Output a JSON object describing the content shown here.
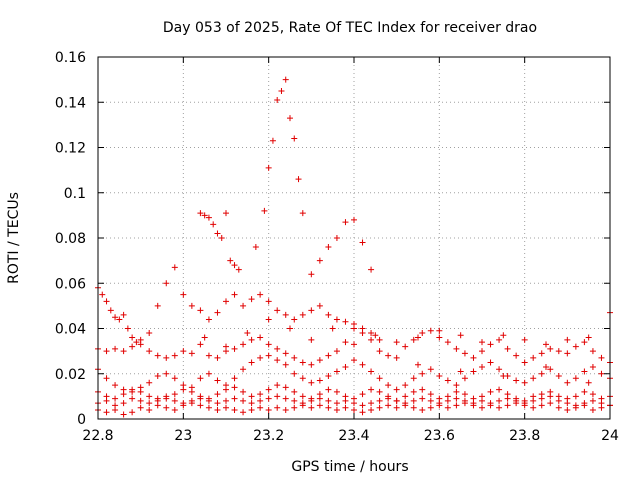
{
  "chart_data": {
    "type": "scatter",
    "title": "Day 053 of 2025, Rate Of TEC Index for receiver drao",
    "xlabel": "GPS time / hours",
    "ylabel": "ROTI / TECUs",
    "xlim": [
      22.8,
      24.0
    ],
    "ylim": [
      0,
      0.16
    ],
    "xticks": [
      22.8,
      23.0,
      23.2,
      23.4,
      23.6,
      23.8,
      24.0
    ],
    "xtick_labels": [
      "22.8",
      "23",
      "23.2",
      "23.4",
      "23.6",
      "23.8",
      "24"
    ],
    "yticks": [
      0,
      0.02,
      0.04,
      0.06,
      0.08,
      0.1,
      0.12,
      0.14,
      0.16
    ],
    "ytick_labels": [
      "0",
      "0.02",
      "0.04",
      "0.06",
      "0.08",
      "0.1",
      "0.12",
      "0.14",
      "0.16"
    ],
    "grid": true,
    "legend": "none",
    "marker": "plus",
    "color": "#e00000",
    "series": [
      {
        "x": [
          22.8,
          22.81,
          22.82,
          22.83,
          22.84,
          22.85,
          22.86,
          22.87,
          22.88,
          22.89,
          22.9,
          22.92,
          22.94,
          22.96,
          22.98,
          23.0,
          23.02,
          23.04,
          23.06,
          23.08,
          23.1,
          23.12,
          23.14,
          23.16,
          23.18,
          23.2,
          23.22,
          23.24,
          23.26,
          23.28,
          23.3,
          23.32,
          23.34,
          23.36,
          23.38,
          23.4,
          23.42,
          23.44,
          23.46,
          23.5,
          23.55,
          23.6,
          23.65,
          23.7,
          23.75,
          23.8,
          23.85,
          23.9,
          23.95,
          24.0
        ],
        "y": [
          0.058,
          0.055,
          0.052,
          0.048,
          0.045,
          0.044,
          0.046,
          0.04,
          0.036,
          0.034,
          0.035,
          0.038,
          0.05,
          0.06,
          0.067,
          0.055,
          0.05,
          0.048,
          0.044,
          0.047,
          0.052,
          0.055,
          0.05,
          0.053,
          0.055,
          0.052,
          0.048,
          0.046,
          0.044,
          0.046,
          0.048,
          0.05,
          0.046,
          0.044,
          0.043,
          0.042,
          0.04,
          0.038,
          0.035,
          0.034,
          0.036,
          0.039,
          0.037,
          0.034,
          0.037,
          0.035,
          0.033,
          0.035,
          0.036,
          0.047
        ]
      },
      {
        "x": [
          23.04,
          23.05,
          23.06,
          23.07,
          23.08,
          23.09,
          23.1,
          23.11,
          23.12,
          23.13
        ],
        "y": [
          0.091,
          0.09,
          0.089,
          0.086,
          0.082,
          0.08,
          0.091,
          0.07,
          0.068,
          0.066
        ]
      },
      {
        "x": [
          23.17,
          23.19,
          23.2,
          23.21,
          23.22,
          23.23,
          23.24,
          23.25,
          23.26,
          23.27,
          23.28,
          23.3,
          23.32,
          23.34,
          23.36,
          23.38,
          23.4,
          23.42,
          23.44
        ],
        "y": [
          0.076,
          0.092,
          0.111,
          0.123,
          0.141,
          0.145,
          0.15,
          0.133,
          0.124,
          0.106,
          0.091,
          0.064,
          0.07,
          0.076,
          0.08,
          0.087,
          0.088,
          0.078,
          0.066
        ]
      },
      {
        "x": [
          22.8,
          22.82,
          22.84,
          22.86,
          22.88,
          22.9,
          22.92,
          22.94,
          22.96,
          22.98,
          23.0,
          23.02,
          23.04,
          23.06,
          23.08,
          23.1,
          23.12,
          23.14,
          23.16,
          23.18,
          23.2,
          23.22,
          23.24,
          23.26,
          23.28,
          23.3,
          23.32,
          23.34,
          23.36,
          23.38,
          23.4,
          23.42,
          23.44,
          23.46,
          23.48,
          23.5,
          23.52,
          23.54,
          23.56,
          23.58,
          23.6,
          23.62,
          23.64,
          23.66,
          23.68,
          23.7,
          23.72,
          23.74,
          23.76,
          23.78,
          23.8,
          23.82,
          23.84,
          23.86,
          23.88,
          23.9,
          23.92,
          23.94,
          23.96,
          23.98,
          24.0
        ],
        "y": [
          0.031,
          0.03,
          0.031,
          0.03,
          0.032,
          0.033,
          0.03,
          0.028,
          0.027,
          0.028,
          0.03,
          0.029,
          0.033,
          0.028,
          0.027,
          0.03,
          0.031,
          0.033,
          0.035,
          0.036,
          0.033,
          0.031,
          0.029,
          0.027,
          0.025,
          0.024,
          0.026,
          0.028,
          0.03,
          0.034,
          0.04,
          0.038,
          0.035,
          0.03,
          0.028,
          0.027,
          0.032,
          0.035,
          0.038,
          0.039,
          0.036,
          0.034,
          0.031,
          0.029,
          0.027,
          0.03,
          0.033,
          0.035,
          0.031,
          0.028,
          0.025,
          0.027,
          0.029,
          0.031,
          0.03,
          0.029,
          0.032,
          0.034,
          0.03,
          0.027,
          0.025
        ]
      },
      {
        "x": [
          22.8,
          22.82,
          22.84,
          22.86,
          22.88,
          22.9,
          22.92,
          22.94,
          22.96,
          22.98,
          23.0,
          23.02,
          23.04,
          23.06,
          23.08,
          23.1,
          23.12,
          23.14,
          23.16,
          23.18,
          23.2,
          23.22,
          23.24,
          23.26,
          23.28,
          23.3,
          23.32,
          23.34,
          23.36,
          23.38,
          23.4,
          23.42,
          23.44,
          23.46,
          23.48,
          23.5,
          23.52,
          23.54,
          23.56,
          23.58,
          23.6,
          23.62,
          23.64,
          23.66,
          23.68,
          23.7,
          23.72,
          23.74,
          23.76,
          23.78,
          23.8,
          23.82,
          23.84,
          23.86,
          23.88,
          23.9,
          23.92,
          23.94,
          23.96,
          23.98,
          24.0
        ],
        "y": [
          0.022,
          0.018,
          0.015,
          0.013,
          0.012,
          0.014,
          0.016,
          0.019,
          0.02,
          0.018,
          0.015,
          0.014,
          0.018,
          0.02,
          0.017,
          0.015,
          0.018,
          0.022,
          0.025,
          0.027,
          0.028,
          0.026,
          0.024,
          0.02,
          0.018,
          0.016,
          0.017,
          0.019,
          0.021,
          0.023,
          0.026,
          0.024,
          0.021,
          0.018,
          0.015,
          0.013,
          0.015,
          0.018,
          0.02,
          0.022,
          0.019,
          0.017,
          0.015,
          0.018,
          0.021,
          0.023,
          0.025,
          0.022,
          0.019,
          0.017,
          0.016,
          0.018,
          0.02,
          0.022,
          0.019,
          0.016,
          0.018,
          0.021,
          0.023,
          0.02,
          0.018
        ]
      },
      {
        "x": [
          22.8,
          22.82,
          22.84,
          22.86,
          22.88,
          22.9,
          22.92,
          22.94,
          22.96,
          22.98,
          23.0,
          23.02,
          23.04,
          23.06,
          23.08,
          23.1,
          23.12,
          23.14,
          23.16,
          23.18,
          23.2,
          23.22,
          23.24,
          23.26,
          23.28,
          23.3,
          23.32,
          23.34,
          23.36,
          23.38,
          23.4,
          23.42,
          23.44,
          23.46,
          23.48,
          23.5,
          23.52,
          23.54,
          23.56,
          23.58,
          23.6,
          23.62,
          23.64,
          23.66,
          23.68,
          23.7,
          23.72,
          23.74,
          23.76,
          23.78,
          23.8,
          23.82,
          23.84,
          23.86,
          23.88,
          23.9,
          23.92,
          23.94,
          23.96,
          23.98,
          24.0
        ],
        "y": [
          0.012,
          0.01,
          0.009,
          0.011,
          0.013,
          0.012,
          0.01,
          0.008,
          0.009,
          0.011,
          0.013,
          0.012,
          0.01,
          0.009,
          0.011,
          0.013,
          0.014,
          0.012,
          0.01,
          0.011,
          0.013,
          0.015,
          0.014,
          0.012,
          0.01,
          0.009,
          0.011,
          0.013,
          0.012,
          0.01,
          0.009,
          0.011,
          0.013,
          0.012,
          0.01,
          0.008,
          0.01,
          0.012,
          0.013,
          0.011,
          0.009,
          0.01,
          0.012,
          0.011,
          0.009,
          0.01,
          0.012,
          0.013,
          0.011,
          0.009,
          0.008,
          0.01,
          0.011,
          0.012,
          0.01,
          0.009,
          0.01,
          0.012,
          0.011,
          0.009,
          0.01
        ]
      },
      {
        "x": [
          22.8,
          22.82,
          22.84,
          22.86,
          22.88,
          22.9,
          22.92,
          22.94,
          22.96,
          22.98,
          23.0,
          23.02,
          23.04,
          23.06,
          23.08,
          23.1,
          23.12,
          23.14,
          23.16,
          23.18,
          23.2,
          23.22,
          23.24,
          23.26,
          23.28,
          23.3,
          23.32,
          23.34,
          23.36,
          23.38,
          23.4,
          23.42,
          23.44,
          23.46,
          23.48,
          23.5,
          23.52,
          23.54,
          23.56,
          23.58,
          23.6,
          23.62,
          23.64,
          23.66,
          23.68,
          23.7,
          23.72,
          23.74,
          23.76,
          23.78,
          23.8,
          23.82,
          23.84,
          23.86,
          23.88,
          23.9,
          23.92,
          23.94,
          23.96,
          23.98,
          24.0
        ],
        "y": [
          0.004,
          0.003,
          0.004,
          0.002,
          0.003,
          0.005,
          0.004,
          0.006,
          0.005,
          0.004,
          0.006,
          0.007,
          0.006,
          0.005,
          0.004,
          0.005,
          0.004,
          0.003,
          0.004,
          0.005,
          0.004,
          0.005,
          0.004,
          0.005,
          0.006,
          0.005,
          0.006,
          0.005,
          0.004,
          0.005,
          0.004,
          0.003,
          0.004,
          0.005,
          0.006,
          0.005,
          0.006,
          0.005,
          0.004,
          0.005,
          0.006,
          0.005,
          0.006,
          0.007,
          0.006,
          0.005,
          0.006,
          0.005,
          0.006,
          0.007,
          0.006,
          0.005,
          0.006,
          0.007,
          0.005,
          0.004,
          0.005,
          0.006,
          0.004,
          0.005,
          0.006
        ]
      },
      {
        "x": [
          22.8,
          22.82,
          22.84,
          22.86,
          22.88,
          22.9,
          22.92,
          22.94,
          22.96,
          22.98,
          23.0,
          23.02,
          23.04,
          23.06,
          23.08,
          23.1,
          23.12,
          23.14,
          23.16,
          23.18,
          23.2,
          23.22,
          23.24,
          23.26,
          23.28,
          23.3,
          23.32,
          23.34,
          23.36,
          23.38,
          23.4,
          23.42,
          23.44,
          23.46,
          23.48,
          23.5,
          23.52,
          23.54,
          23.56,
          23.58,
          23.6,
          23.62,
          23.64,
          23.66,
          23.68,
          23.7,
          23.72,
          23.74,
          23.76,
          23.78,
          23.8,
          23.82,
          23.84,
          23.86,
          23.88,
          23.9,
          23.92,
          23.94,
          23.96,
          23.98,
          24.0
        ],
        "y": [
          0.007,
          0.008,
          0.006,
          0.007,
          0.009,
          0.008,
          0.007,
          0.009,
          0.01,
          0.008,
          0.007,
          0.008,
          0.009,
          0.008,
          0.007,
          0.008,
          0.009,
          0.008,
          0.007,
          0.008,
          0.009,
          0.01,
          0.009,
          0.008,
          0.007,
          0.008,
          0.009,
          0.008,
          0.007,
          0.008,
          0.007,
          0.006,
          0.007,
          0.008,
          0.009,
          0.008,
          0.007,
          0.008,
          0.009,
          0.008,
          0.007,
          0.008,
          0.009,
          0.008,
          0.007,
          0.008,
          0.007,
          0.008,
          0.009,
          0.008,
          0.007,
          0.008,
          0.009,
          0.01,
          0.008,
          0.007,
          0.006,
          0.007,
          0.008,
          0.007,
          0.006
        ]
      },
      {
        "x": [
          23.05,
          23.1,
          23.15,
          23.2,
          23.25,
          23.3,
          23.35,
          23.4,
          23.45,
          23.55,
          23.65,
          23.75,
          23.85,
          23.95
        ],
        "y": [
          0.036,
          0.032,
          0.038,
          0.044,
          0.04,
          0.035,
          0.04,
          0.033,
          0.037,
          0.024,
          0.021,
          0.019,
          0.023,
          0.016
        ]
      }
    ]
  }
}
